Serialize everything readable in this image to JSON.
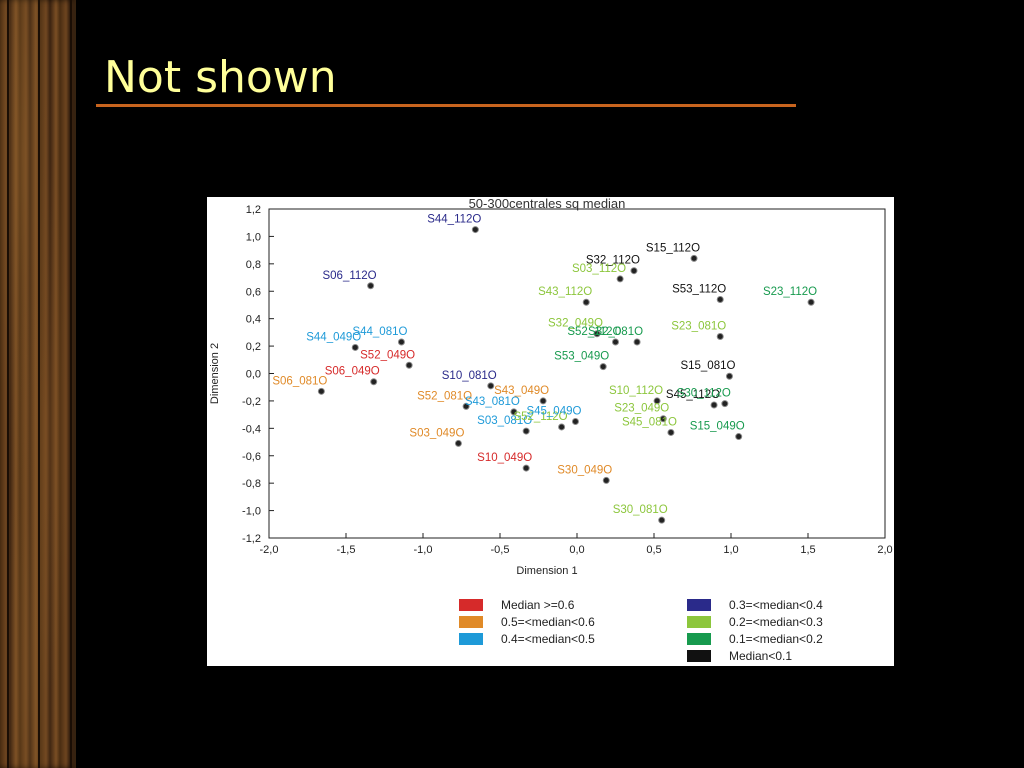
{
  "slide": {
    "title": "Not shown"
  },
  "colors": {
    "background": "#000000",
    "title": "#ffff99",
    "rule": "#c8641e",
    "median_ge_0_6": "#d62a2a",
    "median_0_5_to_0_6": "#e08a28",
    "median_0_4_to_0_5": "#1e9ad8",
    "median_0_3_to_0_4": "#2a2a8a",
    "median_0_2_to_0_3": "#8cc63c",
    "median_0_1_to_0_2": "#179a4e",
    "median_lt_0_1": "#111111"
  },
  "chart_data": {
    "type": "scatter",
    "title": "50-300centrales sq median",
    "xlabel": "Dimension 1",
    "ylabel": "Dimension 2",
    "xlim": [
      -2.0,
      2.0
    ],
    "ylim": [
      -1.2,
      1.2
    ],
    "x_ticks": [
      "-2,0",
      "-1,5",
      "-1,0",
      "-0,5",
      "0,0",
      "0,5",
      "1,0",
      "1,5",
      "2,0"
    ],
    "y_ticks": [
      "1,2",
      "1,0",
      "0,8",
      "0,6",
      "0,4",
      "0,2",
      "0,0",
      "-0,2",
      "-0,4",
      "-0,6",
      "-0,8",
      "-1,0",
      "-1,2"
    ],
    "grid": false,
    "legend_placement": "bottom",
    "legend": [
      {
        "label": "Median >=0.6",
        "color": "#d62a2a"
      },
      {
        "label": "0.5=<median<0.6",
        "color": "#e08a28"
      },
      {
        "label": "0.4=<median<0.5",
        "color": "#1e9ad8"
      },
      {
        "label": "0.3=<median<0.4",
        "color": "#2a2a8a"
      },
      {
        "label": "0.2=<median<0.3",
        "color": "#8cc63c"
      },
      {
        "label": "0.1=<median<0.2",
        "color": "#179a4e"
      },
      {
        "label": "Median<0.1",
        "color": "#111111"
      }
    ],
    "points": [
      {
        "label": "S44_112O",
        "x": -0.66,
        "y": 1.05,
        "color": "#2a2a8a"
      },
      {
        "label": "S06_112O",
        "x": -1.34,
        "y": 0.64,
        "color": "#2a2a8a"
      },
      {
        "label": "S15_112O",
        "x": 0.76,
        "y": 0.84,
        "color": "#111111"
      },
      {
        "label": "S32_112O",
        "x": 0.37,
        "y": 0.75,
        "color": "#111111"
      },
      {
        "label": "S03_112O",
        "x": 0.28,
        "y": 0.69,
        "color": "#8cc63c"
      },
      {
        "label": "S43_112O",
        "x": 0.06,
        "y": 0.52,
        "color": "#8cc63c"
      },
      {
        "label": "S53_112O",
        "x": 0.93,
        "y": 0.54,
        "color": "#111111"
      },
      {
        "label": "S23_112O",
        "x": 1.52,
        "y": 0.52,
        "color": "#179a4e"
      },
      {
        "label": "S32_049O",
        "x": 0.13,
        "y": 0.29,
        "color": "#8cc63c"
      },
      {
        "label": "S52_112O",
        "x": 0.25,
        "y": 0.23,
        "color": "#179a4e"
      },
      {
        "label": "S32_081O",
        "x": 0.39,
        "y": 0.23,
        "color": "#179a4e"
      },
      {
        "label": "S23_081O",
        "x": 0.93,
        "y": 0.27,
        "color": "#8cc63c"
      },
      {
        "label": "S44_049O",
        "x": -1.44,
        "y": 0.19,
        "color": "#1e9ad8"
      },
      {
        "label": "S44_081O",
        "x": -1.14,
        "y": 0.23,
        "color": "#1e9ad8"
      },
      {
        "label": "S52_049O",
        "x": -1.09,
        "y": 0.06,
        "color": "#d62a2a"
      },
      {
        "label": "S53_049O",
        "x": 0.17,
        "y": 0.05,
        "color": "#179a4e"
      },
      {
        "label": "S06_081O",
        "x": -1.66,
        "y": -0.13,
        "color": "#e08a28"
      },
      {
        "label": "S06_049O",
        "x": -1.32,
        "y": -0.06,
        "color": "#d62a2a"
      },
      {
        "label": "S10_081O",
        "x": -0.56,
        "y": -0.09,
        "color": "#2a2a8a"
      },
      {
        "label": "S15_081O",
        "x": 0.99,
        "y": -0.02,
        "color": "#111111"
      },
      {
        "label": "S43_049O",
        "x": -0.22,
        "y": -0.2,
        "color": "#e08a28"
      },
      {
        "label": "S52_081O",
        "x": -0.72,
        "y": -0.24,
        "color": "#e08a28"
      },
      {
        "label": "S43_081O",
        "x": -0.41,
        "y": -0.28,
        "color": "#1e9ad8"
      },
      {
        "label": "S10_112O",
        "x": 0.52,
        "y": -0.2,
        "color": "#8cc63c"
      },
      {
        "label": "S03_081O",
        "x": -0.33,
        "y": -0.42,
        "color": "#1e9ad8"
      },
      {
        "label": "S52_112O",
        "x": -0.1,
        "y": -0.39,
        "color": "#8cc63c"
      },
      {
        "label": "S45_049O",
        "x": -0.01,
        "y": -0.35,
        "color": "#1e9ad8"
      },
      {
        "label": "S23_049O",
        "x": 0.56,
        "y": -0.33,
        "color": "#8cc63c"
      },
      {
        "label": "S45_081O",
        "x": 0.61,
        "y": -0.43,
        "color": "#8cc63c"
      },
      {
        "label": "S45_112O",
        "x": 0.89,
        "y": -0.23,
        "color": "#111111"
      },
      {
        "label": "S30_112O",
        "x": 0.96,
        "y": -0.22,
        "color": "#179a4e"
      },
      {
        "label": "S15_049O",
        "x": 1.05,
        "y": -0.46,
        "color": "#179a4e"
      },
      {
        "label": "S03_049O",
        "x": -0.77,
        "y": -0.51,
        "color": "#e08a28"
      },
      {
        "label": "S10_049O",
        "x": -0.33,
        "y": -0.69,
        "color": "#d62a2a"
      },
      {
        "label": "S30_049O",
        "x": 0.19,
        "y": -0.78,
        "color": "#e08a28"
      },
      {
        "label": "S30_081O",
        "x": 0.55,
        "y": -1.07,
        "color": "#8cc63c"
      }
    ]
  }
}
